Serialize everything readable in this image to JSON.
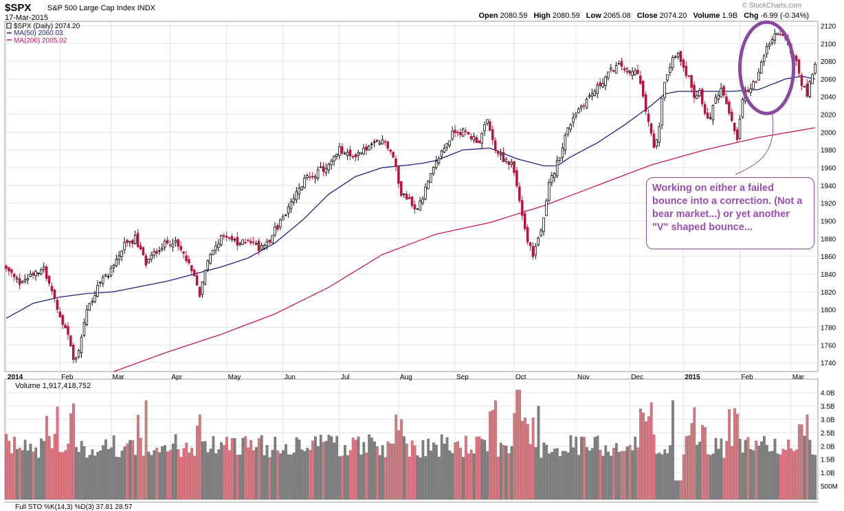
{
  "header": {
    "symbol": "$SPX",
    "description": "S&P 500 Large Cap Index",
    "exchange": "INDX",
    "date": "17-Mar-2015",
    "open_label": "Open",
    "open": "2080.59",
    "high_label": "High",
    "high": "2080.59",
    "low_label": "Low",
    "low": "2065.08",
    "close_label": "Close",
    "close": "2074.20",
    "volume_label": "Volume",
    "volume": "1.9B",
    "chg_label": "Chg",
    "chg": "-6.99 (-0.34%)",
    "watermark": "© StockCharts.com"
  },
  "legend": {
    "series_main": "$SPX (Daily) 2074.20",
    "ma50": "MA(50) 2060.03",
    "ma200": "MA(200) 2005.02"
  },
  "annotation": {
    "text": "Working on either a failed bounce into a correction. (Not a bear market...) or yet another \"V\" shaped bounce..."
  },
  "volume_panel": {
    "label": "Volume 1,917,418,752"
  },
  "sto_panel": {
    "label": "Full STO %K(14,3) %D(3) 37.81 28.57"
  },
  "colors": {
    "up": "#000000",
    "down": "#b5153f",
    "ma50": "#1a237e",
    "ma200": "#c2185b",
    "vol_up": "#7f7f7f",
    "vol_down": "#e0757f",
    "annotation": "#9a4fb0",
    "grid": "#e3e3e3"
  },
  "chart_data": {
    "type": "candlestick",
    "price_axis": {
      "min": 1730,
      "max": 2125,
      "ticks": [
        1740,
        1760,
        1780,
        1800,
        1820,
        1840,
        1860,
        1880,
        1900,
        1920,
        1940,
        1960,
        1980,
        2000,
        2020,
        2040,
        2060,
        2080,
        2100,
        2120
      ]
    },
    "volume_axis": {
      "min": 0,
      "max": 4.3,
      "ticks": [
        {
          "v": 0.5,
          "label": "500M"
        },
        {
          "v": 1.0,
          "label": "1.0B"
        },
        {
          "v": 1.5,
          "label": "1.5B"
        },
        {
          "v": 2.0,
          "label": "2.0B"
        },
        {
          "v": 2.5,
          "label": "2.5B"
        },
        {
          "v": 3.0,
          "label": "3.0B"
        },
        {
          "v": 3.5,
          "label": "3.5B"
        },
        {
          "v": 4.0,
          "label": "4.0B"
        }
      ]
    },
    "x_labels": [
      "2014",
      "Feb",
      "Mar",
      "Apr",
      "May",
      "Jun",
      "Jul",
      "Aug",
      "Sep",
      "Oct",
      "Nov",
      "Dec",
      "2015",
      "Feb",
      "Mar"
    ],
    "x_label_positions": [
      0,
      20,
      39,
      61,
      82,
      103,
      124,
      146,
      167,
      189,
      212,
      232,
      252,
      273,
      292
    ],
    "bar_count": 302,
    "close_path": [
      [
        0,
        1845
      ],
      [
        5,
        1830
      ],
      [
        10,
        1842
      ],
      [
        14,
        1848
      ],
      [
        17,
        1820
      ],
      [
        20,
        1790
      ],
      [
        23,
        1770
      ],
      [
        25,
        1742
      ],
      [
        27,
        1755
      ],
      [
        30,
        1800
      ],
      [
        35,
        1830
      ],
      [
        39,
        1845
      ],
      [
        44,
        1872
      ],
      [
        48,
        1880
      ],
      [
        52,
        1852
      ],
      [
        57,
        1870
      ],
      [
        62,
        1878
      ],
      [
        66,
        1862
      ],
      [
        70,
        1835
      ],
      [
        72,
        1818
      ],
      [
        74,
        1845
      ],
      [
        78,
        1875
      ],
      [
        82,
        1885
      ],
      [
        86,
        1872
      ],
      [
        90,
        1880
      ],
      [
        94,
        1870
      ],
      [
        98,
        1880
      ],
      [
        104,
        1908
      ],
      [
        108,
        1930
      ],
      [
        112,
        1950
      ],
      [
        116,
        1955
      ],
      [
        120,
        1962
      ],
      [
        124,
        1980
      ],
      [
        128,
        1972
      ],
      [
        132,
        1978
      ],
      [
        136,
        1985
      ],
      [
        141,
        1990
      ],
      [
        144,
        1972
      ],
      [
        147,
        1932
      ],
      [
        150,
        1925
      ],
      [
        152,
        1912
      ],
      [
        155,
        1928
      ],
      [
        158,
        1950
      ],
      [
        161,
        1972
      ],
      [
        164,
        1988
      ],
      [
        167,
        2002
      ],
      [
        170,
        2000
      ],
      [
        173,
        1995
      ],
      [
        176,
        1990
      ],
      [
        179,
        2012
      ],
      [
        182,
        1980
      ],
      [
        185,
        1970
      ],
      [
        188,
        1965
      ],
      [
        190,
        1940
      ],
      [
        192,
        1910
      ],
      [
        194,
        1875
      ],
      [
        196,
        1862
      ],
      [
        198,
        1880
      ],
      [
        200,
        1900
      ],
      [
        202,
        1940
      ],
      [
        205,
        1965
      ],
      [
        208,
        1995
      ],
      [
        211,
        2018
      ],
      [
        214,
        2030
      ],
      [
        217,
        2040
      ],
      [
        220,
        2050
      ],
      [
        223,
        2062
      ],
      [
        226,
        2072
      ],
      [
        229,
        2075
      ],
      [
        232,
        2065
      ],
      [
        235,
        2070
      ],
      [
        237,
        2038
      ],
      [
        239,
        2012
      ],
      [
        241,
        1980
      ],
      [
        243,
        2010
      ],
      [
        245,
        2060
      ],
      [
        248,
        2085
      ],
      [
        250,
        2090
      ],
      [
        252,
        2075
      ],
      [
        254,
        2060
      ],
      [
        256,
        2035
      ],
      [
        258,
        2050
      ],
      [
        260,
        2020
      ],
      [
        262,
        2015
      ],
      [
        264,
        2040
      ],
      [
        266,
        2050
      ],
      [
        268,
        2030
      ],
      [
        270,
        2010
      ],
      [
        272,
        1990
      ],
      [
        274,
        2035
      ],
      [
        276,
        2050
      ],
      [
        278,
        2055
      ],
      [
        280,
        2065
      ],
      [
        282,
        2085
      ],
      [
        284,
        2100
      ],
      [
        286,
        2108
      ],
      [
        288,
        2112
      ],
      [
        290,
        2102
      ],
      [
        292,
        2090
      ],
      [
        294,
        2080
      ],
      [
        296,
        2055
      ],
      [
        298,
        2042
      ],
      [
        300,
        2068
      ],
      [
        301,
        2074
      ]
    ],
    "ma50_path": [
      [
        0,
        1790
      ],
      [
        10,
        1807
      ],
      [
        20,
        1814
      ],
      [
        30,
        1818
      ],
      [
        40,
        1820
      ],
      [
        50,
        1826
      ],
      [
        60,
        1832
      ],
      [
        70,
        1840
      ],
      [
        80,
        1848
      ],
      [
        90,
        1858
      ],
      [
        100,
        1875
      ],
      [
        110,
        1900
      ],
      [
        120,
        1930
      ],
      [
        130,
        1950
      ],
      [
        140,
        1960
      ],
      [
        150,
        1963
      ],
      [
        155,
        1965
      ],
      [
        160,
        1968
      ],
      [
        170,
        1980
      ],
      [
        180,
        1982
      ],
      [
        190,
        1970
      ],
      [
        200,
        1962
      ],
      [
        205,
        1962
      ],
      [
        210,
        1972
      ],
      [
        220,
        1988
      ],
      [
        230,
        2008
      ],
      [
        240,
        2030
      ],
      [
        245,
        2043
      ],
      [
        250,
        2046
      ],
      [
        260,
        2046
      ],
      [
        270,
        2046
      ],
      [
        280,
        2048
      ],
      [
        290,
        2060
      ],
      [
        296,
        2063
      ],
      [
        301,
        2060
      ]
    ],
    "ma200_path": [
      [
        40,
        1730
      ],
      [
        60,
        1752
      ],
      [
        80,
        1772
      ],
      [
        100,
        1795
      ],
      [
        120,
        1825
      ],
      [
        140,
        1862
      ],
      [
        160,
        1885
      ],
      [
        180,
        1898
      ],
      [
        200,
        1917
      ],
      [
        220,
        1940
      ],
      [
        240,
        1963
      ],
      [
        260,
        1980
      ],
      [
        280,
        1994
      ],
      [
        301,
        2005
      ]
    ],
    "volume_pattern_note": ""
  },
  "annotation_ellipse": {
    "bar_from": 273,
    "bar_to": 293,
    "price_top": 2124,
    "price_bottom": 2021
  }
}
